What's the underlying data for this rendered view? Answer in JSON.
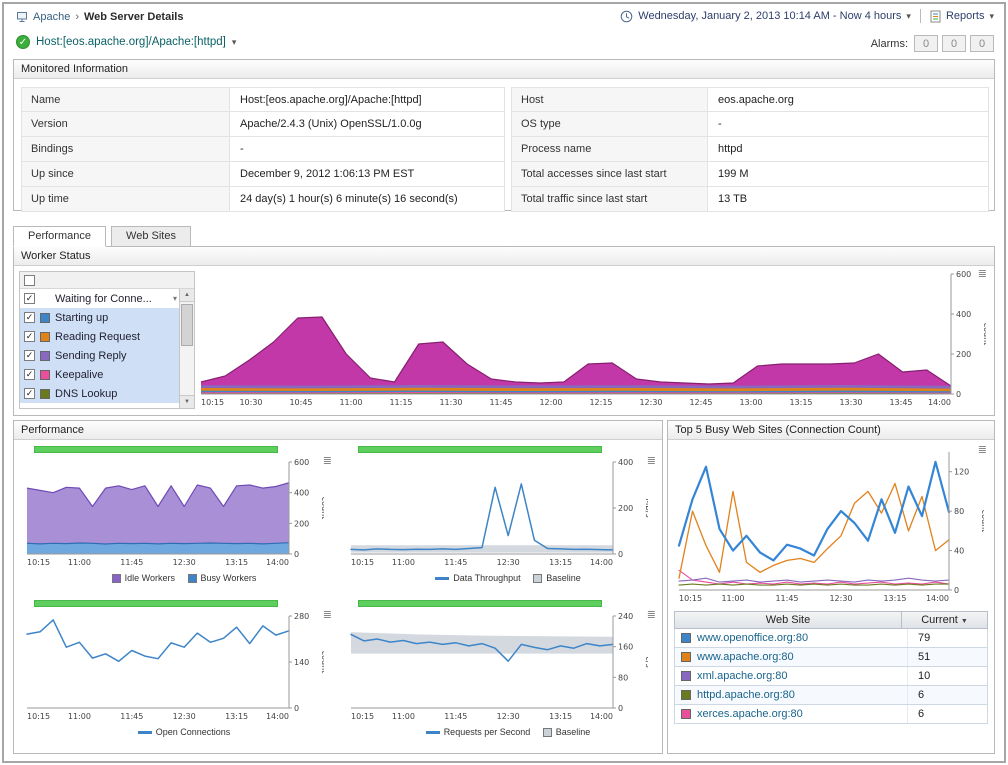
{
  "header": {
    "breadcrumb": {
      "root": "Apache",
      "separator": "›",
      "current": "Web Server Details"
    },
    "time_range": "Wednesday, January 2, 2013 10:14 AM - Now 4 hours",
    "reports_label": "Reports"
  },
  "host_bar": {
    "host": "Host:[eos.apache.org]/Apache:[httpd]",
    "alarms_label": "Alarms:",
    "alarm_counts": [
      "0",
      "0",
      "0"
    ]
  },
  "monitored_info": {
    "title": "Monitored Information",
    "left": [
      {
        "label": "Name",
        "value": "Host:[eos.apache.org]/Apache:[httpd]"
      },
      {
        "label": "Version",
        "value": "Apache/2.4.3 (Unix) OpenSSL/1.0.0g"
      },
      {
        "label": "Bindings",
        "value": "-"
      },
      {
        "label": "Up since",
        "value": "December 9, 2012 1:06:13 PM EST"
      },
      {
        "label": "Up time",
        "value": "24 day(s) 1 hour(s) 6 minute(s) 16 second(s)"
      }
    ],
    "right": [
      {
        "label": "Host",
        "value": "eos.apache.org"
      },
      {
        "label": "OS type",
        "value": "-"
      },
      {
        "label": "Process name",
        "value": "httpd"
      },
      {
        "label": "Total accesses since last start",
        "value": "199 M"
      },
      {
        "label": "Total traffic since last start",
        "value": "13 TB"
      }
    ]
  },
  "tabs": [
    {
      "label": "Performance"
    },
    {
      "label": "Web Sites"
    }
  ],
  "worker_status": {
    "title": "Worker Status",
    "rows": [
      {
        "label": "Waiting for Conne...",
        "checked": true,
        "color": ""
      },
      {
        "label": "Starting up",
        "checked": true,
        "color": "#3d85c8"
      },
      {
        "label": "Reading Request",
        "checked": true,
        "color": "#e0821a"
      },
      {
        "label": "Sending Reply",
        "checked": true,
        "color": "#8968bf"
      },
      {
        "label": "Keepalive",
        "checked": true,
        "color": "#ea4f9b"
      },
      {
        "label": "DNS Lookup",
        "checked": true,
        "color": "#6b7a1f"
      }
    ],
    "chart": {
      "ymin": 0,
      "ymax": 600,
      "yticks": [
        0,
        200,
        400,
        600
      ],
      "ylabel": "count",
      "xticks": [
        "10:15",
        "10:30",
        "10:45",
        "11:00",
        "11:15",
        "11:30",
        "11:45",
        "12:00",
        "12:15",
        "12:30",
        "12:45",
        "13:00",
        "13:15",
        "13:30",
        "13:45",
        "14:00"
      ],
      "series": [
        {
          "name": "Waiting for Connection",
          "type": "area",
          "color": "#c238a8",
          "stroke": "#86206f",
          "values": [
            60,
            90,
            170,
            260,
            380,
            385,
            200,
            80,
            60,
            250,
            260,
            150,
            75,
            60,
            55,
            60,
            150,
            155,
            75,
            60,
            55,
            50,
            55,
            140,
            150,
            150,
            150,
            155,
            200,
            110,
            120,
            40
          ]
        },
        {
          "name": "Sending Reply",
          "type": "area",
          "color": "#8968bf",
          "values": [
            44,
            42,
            45,
            43,
            44,
            42,
            45,
            41
          ]
        },
        {
          "name": "Reading Request",
          "type": "area",
          "color": "#e0821a",
          "values": [
            30,
            28,
            31,
            29,
            30,
            28,
            31,
            27
          ]
        },
        {
          "name": "Starting up",
          "type": "area",
          "color": "#3d85c8",
          "values": [
            16,
            15,
            17,
            15,
            16,
            14,
            17,
            14
          ]
        },
        {
          "name": "Keepalive",
          "type": "area",
          "color": "#ea4f9b",
          "values": [
            9,
            8,
            10,
            8,
            9,
            8,
            9,
            7
          ]
        },
        {
          "name": "DNS Lookup",
          "type": "area",
          "color": "#6b7a1f",
          "values": [
            4,
            4,
            5,
            4,
            4,
            4,
            5,
            3
          ]
        }
      ]
    }
  },
  "performance": {
    "title": "Performance",
    "charts": [
      {
        "chart": {
          "ymin": 0,
          "ymax": 600,
          "yticks": [
            0,
            200,
            400,
            600
          ],
          "ylabel": "count",
          "xticks": [
            "10:15",
            "11:00",
            "11:45",
            "12:30",
            "13:15",
            "14:00"
          ],
          "series": [
            {
              "name": "Idle Workers",
              "type": "area",
              "color": "#a98fd6",
              "stroke": "#6f4bb5",
              "values": [
                430,
                415,
                400,
                435,
                430,
                310,
                430,
                445,
                420,
                445,
                310,
                445,
                310,
                450,
                430,
                310,
                445,
                450,
                430,
                440,
                465
              ]
            },
            {
              "name": "Busy Workers",
              "type": "area",
              "color": "#6fa8df",
              "stroke": "#2e6eb5",
              "values": [
                70,
                66,
                70,
                68,
                72,
                70,
                65,
                70,
                68,
                70,
                66,
                70,
                68,
                70,
                72,
                70,
                68,
                70,
                66,
                70,
                74
              ]
            }
          ]
        },
        "legend": [
          {
            "label": "Idle Workers",
            "color": "#8a63c9"
          },
          {
            "label": "Busy Workers",
            "color": "#3d85c8"
          }
        ]
      },
      {
        "chart": {
          "ymin": 0,
          "ymax": 400,
          "yticks": [
            0,
            200,
            400
          ],
          "ylabel": "MB/s",
          "xticks": [
            "10:15",
            "11:00",
            "11:45",
            "12:30",
            "13:15",
            "14:00"
          ],
          "series": [
            {
              "name": "Baseline",
              "type": "band",
              "color": "#ccd2da",
              "opacity": 0.85,
              "high": [
                38,
                38
              ],
              "low": [
                6,
                6
              ]
            },
            {
              "name": "Data Throughput",
              "type": "line",
              "color": "#3d85c8",
              "width": 1.5,
              "values": [
                20,
                18,
                22,
                20,
                19,
                21,
                20,
                22,
                20,
                24,
                28,
                290,
                80,
                305,
                60,
                24,
                22,
                20,
                21,
                19,
                18
              ]
            }
          ]
        },
        "legend": [
          {
            "label": "Data Throughput",
            "color": "#3d85c8"
          },
          {
            "label": "Baseline",
            "color": "#ccd2da"
          }
        ]
      },
      {
        "chart": {
          "ymin": 0,
          "ymax": 280,
          "yticks": [
            0,
            140,
            280
          ],
          "ylabel": "count",
          "xticks": [
            "10:15",
            "11:00",
            "11:45",
            "12:30",
            "13:15",
            "14:00"
          ],
          "series": [
            {
              "name": "Open Connections",
              "type": "line",
              "color": "#3d85c8",
              "width": 1.5,
              "values": [
                225,
                232,
                268,
                185,
                200,
                152,
                165,
                142,
                175,
                158,
                150,
                198,
                185,
                228,
                200,
                212,
                246,
                196,
                250,
                222,
                235
              ]
            }
          ]
        },
        "legend": [
          {
            "label": "Open Connections",
            "color": "#3d85c8"
          }
        ]
      },
      {
        "chart": {
          "ymin": 0,
          "ymax": 240,
          "yticks": [
            0,
            80,
            160,
            240
          ],
          "ylabel": "c/s",
          "xticks": [
            "10:15",
            "11:00",
            "11:45",
            "12:30",
            "13:15",
            "14:00"
          ],
          "series": [
            {
              "name": "Baseline",
              "type": "band",
              "color": "#ccd2da",
              "opacity": 0.85,
              "high": [
                198,
                192,
                189,
                187,
                186
              ],
              "low": [
                142,
                142,
                142,
                142,
                142
              ]
            },
            {
              "name": "Requests per Second",
              "type": "line",
              "color": "#3d85c8",
              "width": 1.5,
              "values": [
                192,
                175,
                180,
                172,
                176,
                168,
                172,
                166,
                170,
                162,
                168,
                156,
                122,
                166,
                158,
                152,
                162,
                156,
                168,
                162,
                166
              ]
            }
          ]
        },
        "legend": [
          {
            "label": "Requests per Second",
            "color": "#3d85c8"
          },
          {
            "label": "Baseline",
            "color": "#ccd2da"
          }
        ]
      }
    ]
  },
  "top5": {
    "title": "Top 5 Busy Web Sites (Connection Count)",
    "chart": {
      "ymin": 0,
      "ymax": 140,
      "yticks": [
        0,
        40,
        80,
        120
      ],
      "ylabel": "count",
      "xticks": [
        "10:15",
        "11:00",
        "11:45",
        "12:30",
        "13:15",
        "14:00"
      ],
      "series": [
        {
          "name": "xerces.apache.org:80",
          "type": "line",
          "color": "#ea4f9b",
          "width": 1.1,
          "values": [
            20,
            10,
            8,
            6,
            8,
            6,
            7,
            6,
            8,
            6,
            7,
            6,
            8,
            6,
            7,
            8,
            6,
            7,
            6,
            8,
            6
          ]
        },
        {
          "name": "httpd.apache.org:80",
          "type": "line",
          "color": "#6b7a1f",
          "width": 1.1,
          "values": [
            5,
            6,
            5,
            6,
            5,
            6,
            5,
            5,
            6,
            5,
            6,
            5,
            6,
            5,
            5,
            6,
            5,
            6,
            5,
            6,
            6
          ]
        },
        {
          "name": "xml.apache.org:80",
          "type": "line",
          "color": "#8968bf",
          "width": 1.1,
          "values": [
            9,
            10,
            12,
            8,
            9,
            10,
            8,
            9,
            10,
            8,
            9,
            10,
            9,
            8,
            10,
            9,
            10,
            12,
            10,
            9,
            10
          ]
        },
        {
          "name": "www.apache.org:80",
          "type": "line",
          "color": "#e0821a",
          "width": 1.3,
          "values": [
            12,
            80,
            45,
            18,
            100,
            28,
            18,
            25,
            30,
            32,
            28,
            42,
            55,
            88,
            100,
            78,
            108,
            60,
            95,
            40,
            51
          ]
        },
        {
          "name": "www.openoffice.org:80",
          "type": "line",
          "color": "#3585d6",
          "width": 2.2,
          "values": [
            45,
            92,
            125,
            62,
            40,
            55,
            38,
            30,
            46,
            42,
            35,
            62,
            80,
            68,
            50,
            92,
            58,
            105,
            75,
            130,
            79
          ]
        }
      ]
    },
    "table": {
      "headers": {
        "site": "Web Site",
        "current": "Current"
      },
      "rows": [
        {
          "color": "#3d85c8",
          "site": "www.openoffice.org:80",
          "value": "79"
        },
        {
          "color": "#e0821a",
          "site": "www.apache.org:80",
          "value": "51"
        },
        {
          "color": "#8968bf",
          "site": "xml.apache.org:80",
          "value": "10"
        },
        {
          "color": "#6b7a1f",
          "site": "httpd.apache.org:80",
          "value": "6"
        },
        {
          "color": "#ea4f9b",
          "site": "xerces.apache.org:80",
          "value": "6"
        }
      ]
    }
  }
}
